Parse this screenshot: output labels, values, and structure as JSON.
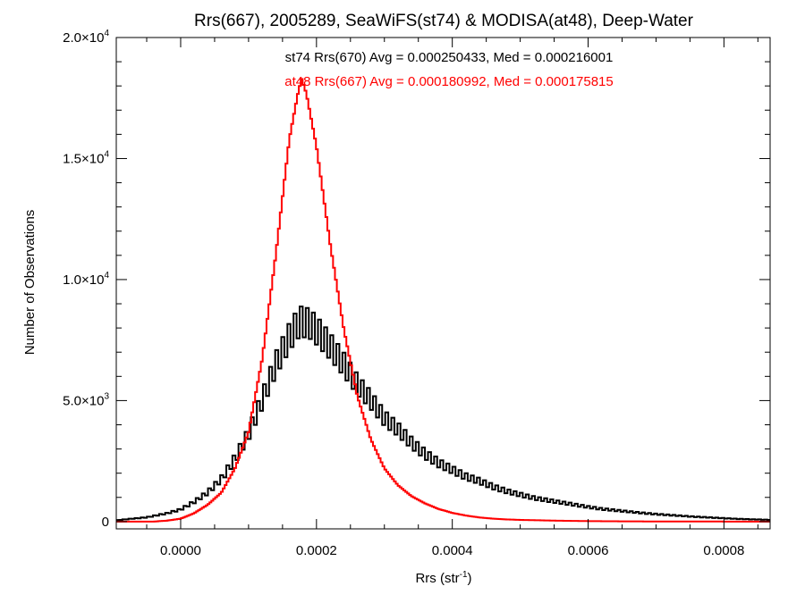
{
  "chart_data": {
    "type": "histogram",
    "title": "Rrs(667), 2005289, SeaWiFS(st74) & MODISA(at48), Deep-Water",
    "xlabel_main": "Rrs (str",
    "xlabel_sup": "-1",
    "xlabel_close": ")",
    "ylabel": "Number of Observations",
    "xlim": [
      -9.48e-05,
      0.000868
    ],
    "ylim": [
      -300,
      20000
    ],
    "x_ticks": [
      {
        "value": 0.0,
        "label": "0.0000"
      },
      {
        "value": 0.0002,
        "label": "0.0002"
      },
      {
        "value": 0.0004,
        "label": "0.0004"
      },
      {
        "value": 0.0006,
        "label": "0.0006"
      },
      {
        "value": 0.0008,
        "label": "0.0008"
      }
    ],
    "x_minor_step": 5e-05,
    "y_ticks": [
      {
        "value": 0,
        "mant": "0",
        "exp": ""
      },
      {
        "value": 5000,
        "mant": "5.0×10",
        "exp": "3"
      },
      {
        "value": 10000,
        "mant": "1.0×10",
        "exp": "4"
      },
      {
        "value": 15000,
        "mant": "1.5×10",
        "exp": "4"
      },
      {
        "value": 20000,
        "mant": "2.0×10",
        "exp": "4"
      }
    ],
    "y_minor_step": 1000,
    "grid": false,
    "annotations": [
      {
        "text": "st74 Rrs(670) Avg = 0.000250433, Med = 0.000216001",
        "color": "#000000"
      },
      {
        "text": "at48 Rrs(667) Avg = 0.000180992, Med = 0.000175815",
        "color": "#ff0000"
      }
    ],
    "series": [
      {
        "id": "st74",
        "color": "#000000",
        "bin_width": 4.5e-06,
        "odd_even_ratio": 0.86,
        "profile": [
          [
            -9.48e-05,
            60
          ],
          [
            -5e-05,
            190
          ],
          [
            -2e-05,
            370
          ],
          [
            0.0,
            540
          ],
          [
            2e-05,
            880
          ],
          [
            4e-05,
            1300
          ],
          [
            6e-05,
            1900
          ],
          [
            8e-05,
            2800
          ],
          [
            0.0001,
            3900
          ],
          [
            0.00012,
            5400
          ],
          [
            0.00014,
            7000
          ],
          [
            0.00016,
            8200
          ],
          [
            0.000175,
            8900
          ],
          [
            0.00019,
            8800
          ],
          [
            0.0002,
            8500
          ],
          [
            0.00022,
            7800
          ],
          [
            0.00024,
            7000
          ],
          [
            0.00026,
            6100
          ],
          [
            0.00028,
            5400
          ],
          [
            0.0003,
            4600
          ],
          [
            0.00032,
            4100
          ],
          [
            0.00034,
            3500
          ],
          [
            0.00036,
            3000
          ],
          [
            0.00038,
            2600
          ],
          [
            0.0004,
            2300
          ],
          [
            0.00042,
            2000
          ],
          [
            0.00044,
            1800
          ],
          [
            0.00046,
            1550
          ],
          [
            0.00048,
            1350
          ],
          [
            0.0005,
            1200
          ],
          [
            0.00052,
            1050
          ],
          [
            0.00054,
            950
          ],
          [
            0.00056,
            850
          ],
          [
            0.00058,
            750
          ],
          [
            0.0006,
            650
          ],
          [
            0.00062,
            560
          ],
          [
            0.00064,
            500
          ],
          [
            0.00066,
            440
          ],
          [
            0.00068,
            380
          ],
          [
            0.0007,
            330
          ],
          [
            0.00072,
            290
          ],
          [
            0.00074,
            250
          ],
          [
            0.00076,
            210
          ],
          [
            0.00078,
            180
          ],
          [
            0.0008,
            150
          ],
          [
            0.00082,
            120
          ],
          [
            0.00084,
            100
          ],
          [
            0.000868,
            80
          ]
        ]
      },
      {
        "id": "at48",
        "color": "#ff0000",
        "bin_width": 2.8e-06,
        "odd_even_ratio": 1.0,
        "profile": [
          [
            -4e-05,
            0
          ],
          [
            -2e-05,
            40
          ],
          [
            0.0,
            120
          ],
          [
            2e-05,
            350
          ],
          [
            4e-05,
            700
          ],
          [
            6e-05,
            1200
          ],
          [
            8e-05,
            2200
          ],
          [
            0.0001,
            3700
          ],
          [
            0.00012,
            6700
          ],
          [
            0.00014,
            11000
          ],
          [
            0.00016,
            15800
          ],
          [
            0.000172,
            17600
          ],
          [
            0.000178,
            18300
          ],
          [
            0.000185,
            17700
          ],
          [
            0.0002,
            15500
          ],
          [
            0.00021,
            13500
          ],
          [
            0.00022,
            11500
          ],
          [
            0.00024,
            8000
          ],
          [
            0.00026,
            5200
          ],
          [
            0.00028,
            3400
          ],
          [
            0.0003,
            2200
          ],
          [
            0.00032,
            1500
          ],
          [
            0.00034,
            1050
          ],
          [
            0.00036,
            750
          ],
          [
            0.00038,
            520
          ],
          [
            0.0004,
            360
          ],
          [
            0.00042,
            250
          ],
          [
            0.00044,
            170
          ],
          [
            0.00046,
            120
          ],
          [
            0.00048,
            90
          ],
          [
            0.0005,
            70
          ],
          [
            0.00055,
            40
          ],
          [
            0.0006,
            20
          ],
          [
            0.00065,
            10
          ],
          [
            0.0007,
            5
          ],
          [
            0.000868,
            0
          ]
        ]
      }
    ]
  }
}
